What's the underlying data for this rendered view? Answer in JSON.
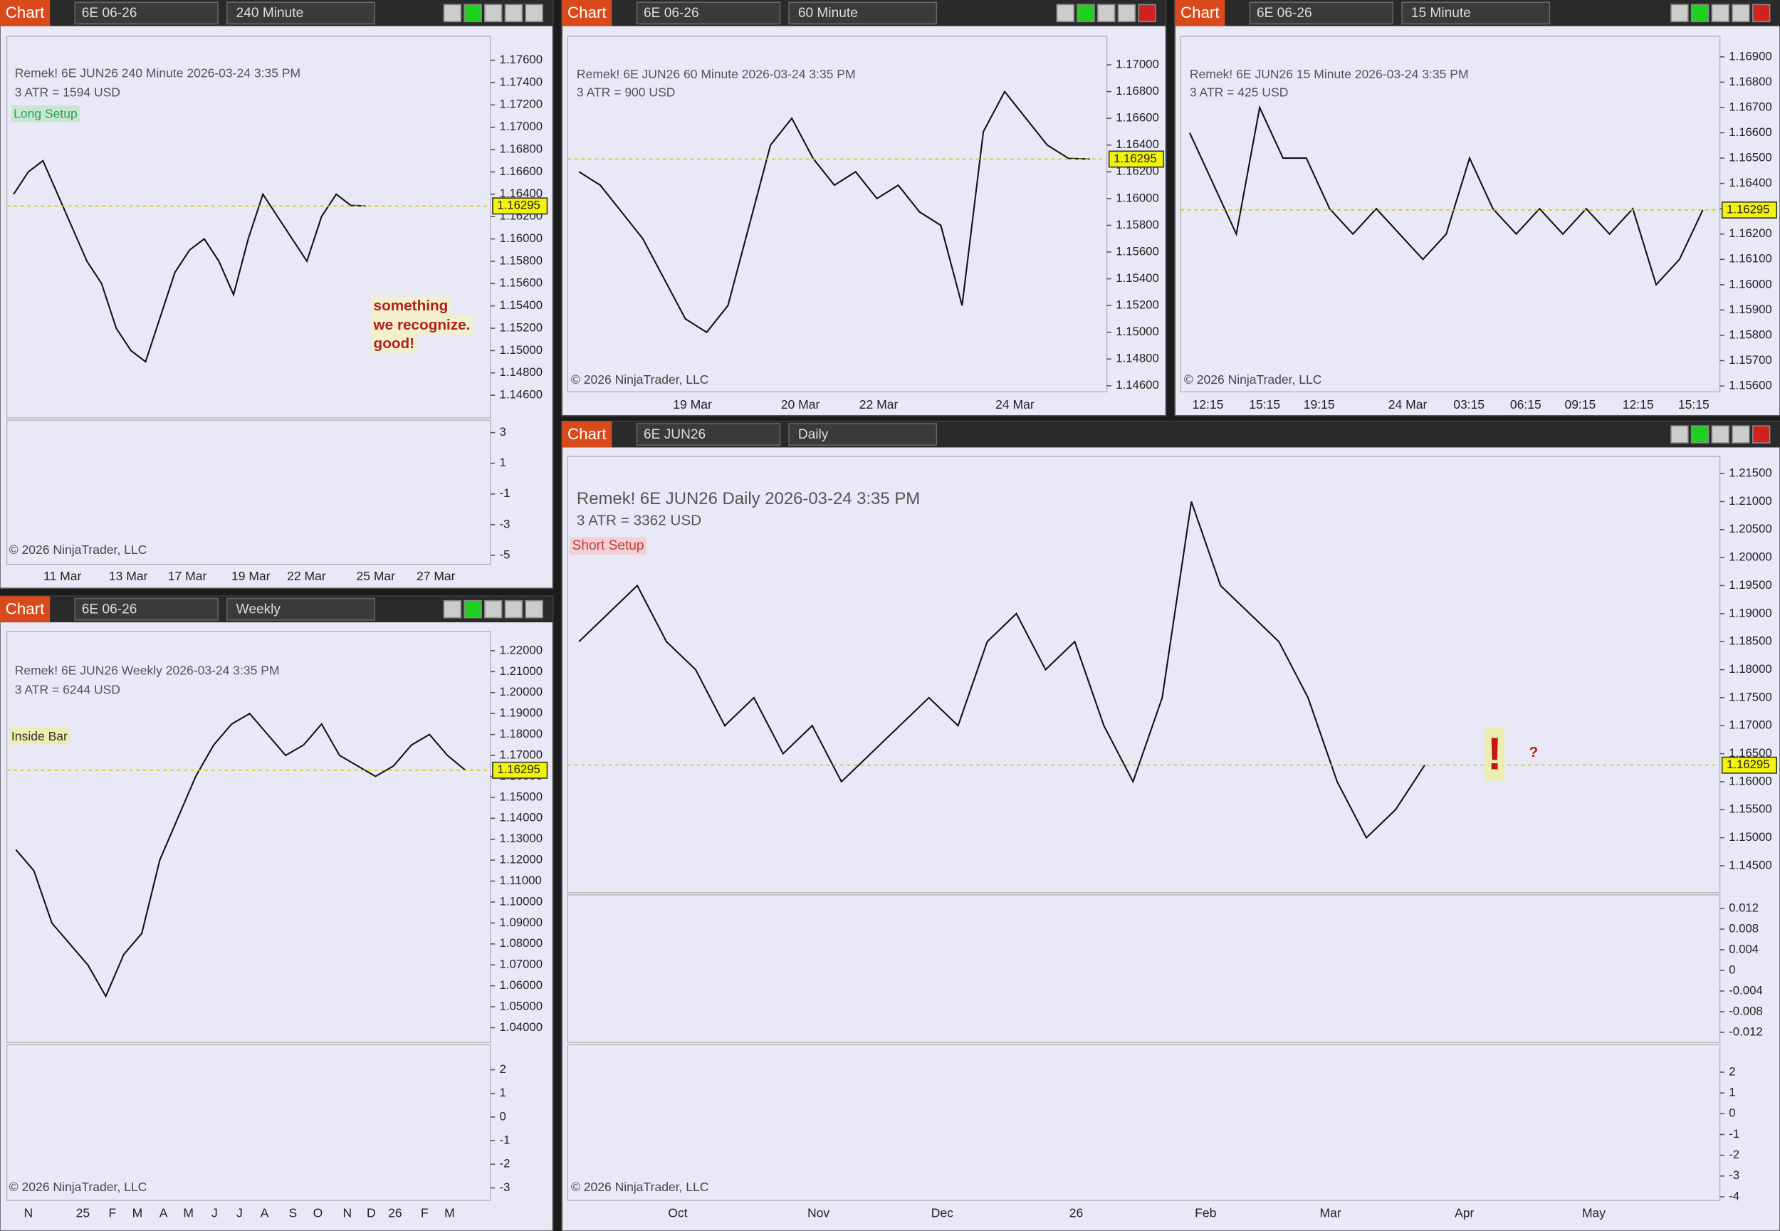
{
  "windows": [
    {
      "toolbar": {
        "tab": "Chart",
        "symbol": "6E 06-26",
        "timeframe": "240 Minute"
      },
      "header": [
        "Remek!  6E JUN26  240 Minute  2026-03-24 3:35 PM",
        "3 ATR = 1594 USD"
      ],
      "annotations": [
        "Long Setup",
        "something",
        "we recognize.",
        "good!"
      ],
      "price_axis": {
        "lim": [
          1.14397,
          1.17814
        ],
        "ticks": [
          {
            "value": 1.176,
            "label": "1.17600"
          },
          {
            "value": 1.174,
            "label": "1.17400"
          },
          {
            "value": 1.172,
            "label": "1.17200"
          },
          {
            "value": 1.17,
            "label": "1.17000"
          },
          {
            "value": 1.168,
            "label": "1.16800"
          },
          {
            "value": 1.166,
            "label": "1.16600"
          },
          {
            "value": 1.164,
            "label": "1.16400"
          },
          {
            "value": 1.162,
            "label": "1.16200"
          },
          {
            "value": 1.16,
            "label": "1.16000"
          },
          {
            "value": 1.158,
            "label": "1.15800"
          },
          {
            "value": 1.156,
            "label": "1.15600"
          },
          {
            "value": 1.154,
            "label": "1.15400"
          },
          {
            "value": 1.152,
            "label": "1.15200"
          },
          {
            "value": 1.15,
            "label": "1.15000"
          },
          {
            "value": 1.148,
            "label": "1.14800"
          },
          {
            "value": 1.146,
            "label": "1.14600"
          }
        ]
      },
      "closes": [
        1.164,
        1.166,
        1.167,
        1.164,
        1.161,
        1.158,
        1.156,
        1.152,
        1.15,
        1.149,
        1.153,
        1.157,
        1.159,
        1.16,
        1.158,
        1.155,
        1.16,
        1.164,
        1.162,
        1.16,
        1.158,
        1.162,
        1.164,
        1.163,
        1.16295
      ],
      "last_price": {
        "value": 1.16295,
        "label": "1.16295"
      },
      "indicators": [
        {
          "lim": [
            -5.59,
            3.81
          ],
          "ticks": [
            3,
            1,
            -1,
            -3,
            -5
          ]
        }
      ],
      "dates": [
        "11 Mar",
        "13 Mar",
        "17 Mar",
        "19 Mar",
        "22 Mar",
        "25 Mar",
        "27 Mar"
      ],
      "copyright": "© 2026 NinjaTrader, LLC"
    },
    {
      "toolbar": {
        "tab": "Chart",
        "symbol": "6E 06-26",
        "timeframe": "60 Minute"
      },
      "header": [
        "Remek!  6E JUN26  60 Minute  2026-03-24 3:35 PM",
        "3 ATR = 900 USD"
      ],
      "annotations": [],
      "price_axis": {
        "lim": [
          1.14555,
          1.17213
        ],
        "ticks": [
          {
            "value": 1.17,
            "label": "1.17000"
          },
          {
            "value": 1.168,
            "label": "1.16800"
          },
          {
            "value": 1.166,
            "label": "1.16600"
          },
          {
            "value": 1.164,
            "label": "1.16400"
          },
          {
            "value": 1.162,
            "label": "1.16200"
          },
          {
            "value": 1.16,
            "label": "1.16000"
          },
          {
            "value": 1.158,
            "label": "1.15800"
          },
          {
            "value": 1.156,
            "label": "1.15600"
          },
          {
            "value": 1.154,
            "label": "1.15400"
          },
          {
            "value": 1.152,
            "label": "1.15200"
          },
          {
            "value": 1.15,
            "label": "1.15000"
          },
          {
            "value": 1.148,
            "label": "1.14800"
          },
          {
            "value": 1.146,
            "label": "1.14600"
          }
        ]
      },
      "closes": [
        1.162,
        1.161,
        1.159,
        1.157,
        1.154,
        1.151,
        1.15,
        1.152,
        1.158,
        1.164,
        1.166,
        1.163,
        1.161,
        1.162,
        1.16,
        1.161,
        1.159,
        1.158,
        1.152,
        1.165,
        1.168,
        1.166,
        1.164,
        1.163,
        1.16295
      ],
      "last_price": {
        "value": 1.16295,
        "label": "1.16295"
      },
      "indicators": [],
      "dates": [
        "19 Mar",
        "20 Mar",
        "22 Mar",
        "24 Mar"
      ],
      "copyright": "© 2026 NinjaTrader, LLC"
    },
    {
      "toolbar": {
        "tab": "Chart",
        "symbol": "6E 06-26",
        "timeframe": "15 Minute"
      },
      "header": [
        "Remek!  6E JUN26  15 Minute  2026-03-24 3:35 PM",
        "3 ATR = 425 USD"
      ],
      "annotations": [],
      "price_axis": {
        "lim": [
          1.15577,
          1.16981
        ],
        "ticks": [
          {
            "value": 1.169,
            "label": "1.16900"
          },
          {
            "value": 1.168,
            "label": "1.16800"
          },
          {
            "value": 1.167,
            "label": "1.16700"
          },
          {
            "value": 1.166,
            "label": "1.16600"
          },
          {
            "value": 1.165,
            "label": "1.16500"
          },
          {
            "value": 1.164,
            "label": "1.16400"
          },
          {
            "value": 1.163,
            "label": "1.16300"
          },
          {
            "value": 1.162,
            "label": "1.16200"
          },
          {
            "value": 1.161,
            "label": "1.16100"
          },
          {
            "value": 1.16,
            "label": "1.16000"
          },
          {
            "value": 1.159,
            "label": "1.15900"
          },
          {
            "value": 1.158,
            "label": "1.15800"
          },
          {
            "value": 1.157,
            "label": "1.15700"
          },
          {
            "value": 1.156,
            "label": "1.15600"
          }
        ]
      },
      "closes": [
        1.166,
        1.164,
        1.162,
        1.167,
        1.165,
        1.165,
        1.163,
        1.162,
        1.163,
        1.162,
        1.161,
        1.162,
        1.165,
        1.163,
        1.162,
        1.163,
        1.162,
        1.163,
        1.162,
        1.163,
        1.16,
        1.161,
        1.16295
      ],
      "last_price": {
        "value": 1.16295,
        "label": "1.16295"
      },
      "indicators": [],
      "dates": [
        "12:15",
        "15:15",
        "19:15",
        "24 Mar",
        "03:15",
        "06:15",
        "09:15",
        "12:15",
        "15:15"
      ],
      "copyright": "© 2026 NinjaTrader, LLC"
    },
    {
      "toolbar": {
        "tab": "Chart",
        "symbol": "6E 06-26",
        "timeframe": "Weekly"
      },
      "header": [
        "Remek!  6E JUN26  Weekly  2026-03-24 3:35 PM",
        "3 ATR = 6244 USD"
      ],
      "annotations": [
        "Inside Bar"
      ],
      "price_axis": {
        "lim": [
          1.03295,
          1.22922
        ],
        "ticks": [
          {
            "value": 1.22,
            "label": "1.22000"
          },
          {
            "value": 1.21,
            "label": "1.21000"
          },
          {
            "value": 1.2,
            "label": "1.20000"
          },
          {
            "value": 1.19,
            "label": "1.19000"
          },
          {
            "value": 1.18,
            "label": "1.18000"
          },
          {
            "value": 1.17,
            "label": "1.17000"
          },
          {
            "value": 1.16,
            "label": "1.16000"
          },
          {
            "value": 1.15,
            "label": "1.15000"
          },
          {
            "value": 1.14,
            "label": "1.14000"
          },
          {
            "value": 1.13,
            "label": "1.13000"
          },
          {
            "value": 1.12,
            "label": "1.12000"
          },
          {
            "value": 1.11,
            "label": "1.11000"
          },
          {
            "value": 1.1,
            "label": "1.10000"
          },
          {
            "value": 1.09,
            "label": "1.09000"
          },
          {
            "value": 1.08,
            "label": "1.08000"
          },
          {
            "value": 1.07,
            "label": "1.07000"
          },
          {
            "value": 1.06,
            "label": "1.06000"
          },
          {
            "value": 1.05,
            "label": "1.05000"
          },
          {
            "value": 1.04,
            "label": "1.04000"
          }
        ]
      },
      "closes": [
        1.125,
        1.115,
        1.09,
        1.08,
        1.07,
        1.055,
        1.075,
        1.085,
        1.12,
        1.14,
        1.16,
        1.175,
        1.185,
        1.19,
        1.18,
        1.17,
        1.175,
        1.185,
        1.17,
        1.165,
        1.16,
        1.165,
        1.175,
        1.18,
        1.17,
        1.16295
      ],
      "last_price": {
        "value": 1.16295,
        "label": "1.16295"
      },
      "indicators": [
        {
          "lim": [
            -3.53,
            3.06
          ],
          "ticks": [
            2,
            1,
            0,
            -1,
            -2,
            -3
          ]
        }
      ],
      "dates": [
        "N",
        "25",
        "F",
        "M",
        "A",
        "M",
        "J",
        "J",
        "A",
        "S",
        "O",
        "N",
        "D",
        "26",
        "F",
        "M"
      ],
      "copyright": "© 2026 NinjaTrader, LLC"
    },
    {
      "toolbar": {
        "tab": "Chart",
        "symbol": "6E JUN26",
        "timeframe": "Daily"
      },
      "header": [
        "Remek!  6E JUN26  Daily  2026-03-24 3:35 PM",
        "3 ATR = 3362 USD"
      ],
      "annotations": [
        "Short Setup",
        "!",
        "?"
      ],
      "price_axis": {
        "lim": [
          1.14021,
          1.21804
        ],
        "ticks": [
          {
            "value": 1.215,
            "label": "1.21500"
          },
          {
            "value": 1.21,
            "label": "1.21000"
          },
          {
            "value": 1.205,
            "label": "1.20500"
          },
          {
            "value": 1.2,
            "label": "1.20000"
          },
          {
            "value": 1.195,
            "label": "1.19500"
          },
          {
            "value": 1.19,
            "label": "1.19000"
          },
          {
            "value": 1.185,
            "label": "1.18500"
          },
          {
            "value": 1.18,
            "label": "1.18000"
          },
          {
            "value": 1.175,
            "label": "1.17500"
          },
          {
            "value": 1.17,
            "label": "1.17000"
          },
          {
            "value": 1.165,
            "label": "1.16500"
          },
          {
            "value": 1.16,
            "label": "1.16000"
          },
          {
            "value": 1.155,
            "label": "1.15500"
          },
          {
            "value": 1.15,
            "label": "1.15000"
          },
          {
            "value": 1.145,
            "label": "1.14500"
          }
        ]
      },
      "closes": [
        1.185,
        1.19,
        1.195,
        1.185,
        1.18,
        1.17,
        1.175,
        1.165,
        1.17,
        1.16,
        1.165,
        1.17,
        1.175,
        1.17,
        1.185,
        1.19,
        1.18,
        1.185,
        1.17,
        1.16,
        1.175,
        1.21,
        1.195,
        1.19,
        1.185,
        1.175,
        1.16,
        1.15,
        1.155,
        1.16295
      ],
      "last_price": {
        "value": 1.16295,
        "label": "1.16295"
      },
      "indicators": [
        {
          "lim": [
            -0.01398,
            0.01464
          ],
          "ticks": [
            0.012,
            0.008,
            0.004,
            0,
            -0.004,
            -0.008,
            -0.012
          ]
        },
        {
          "lim": [
            -4.17,
            3.32
          ],
          "ticks": [
            2,
            1,
            0,
            -1,
            -2,
            -3,
            -4
          ]
        }
      ],
      "dates": [
        "Oct",
        "Nov",
        "Dec",
        "26",
        "Feb",
        "Mar",
        "Apr",
        "May"
      ],
      "copyright": "© 2026 NinjaTrader, LLC"
    }
  ]
}
